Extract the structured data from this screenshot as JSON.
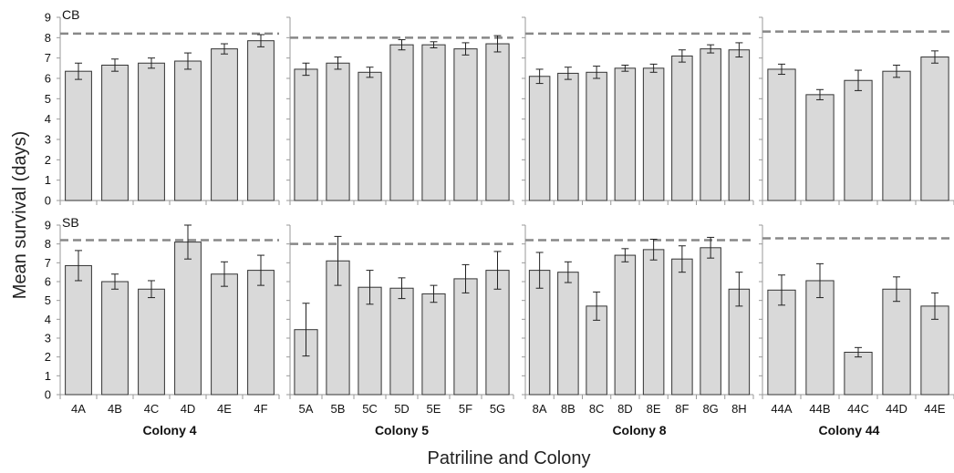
{
  "chart_data": {
    "type": "bar",
    "ylabel": "Mean survival (days)",
    "xlabel": "Patriline and Colony",
    "ylim": [
      0,
      9
    ],
    "yticks": [
      0,
      1,
      2,
      3,
      4,
      5,
      6,
      7,
      8,
      9
    ],
    "colors": {
      "bar_fill": "#d9d9d9",
      "bar_stroke": "#333333",
      "reference_line": "#888888"
    },
    "reference_line_style": "dashed",
    "rows": [
      "CB",
      "SB"
    ],
    "colonies": [
      {
        "name": "Colony 4",
        "categories": [
          "4A",
          "4B",
          "4C",
          "4D",
          "4E",
          "4F"
        ],
        "series": [
          {
            "name": "CB",
            "values": [
              6.35,
              6.65,
              6.75,
              6.85,
              7.45,
              7.85
            ],
            "errors": [
              0.4,
              0.3,
              0.25,
              0.4,
              0.25,
              0.3
            ],
            "reference": 8.2
          },
          {
            "name": "SB",
            "values": [
              6.85,
              6.0,
              5.6,
              8.1,
              6.4,
              6.6
            ],
            "errors": [
              0.8,
              0.4,
              0.45,
              0.9,
              0.65,
              0.8
            ],
            "reference": 8.2
          }
        ]
      },
      {
        "name": "Colony 5",
        "categories": [
          "5A",
          "5B",
          "5C",
          "5D",
          "5E",
          "5F",
          "5G"
        ],
        "series": [
          {
            "name": "CB",
            "values": [
              6.45,
              6.75,
              6.3,
              7.65,
              7.65,
              7.45,
              7.7
            ],
            "errors": [
              0.3,
              0.3,
              0.25,
              0.25,
              0.15,
              0.3,
              0.4
            ],
            "reference": 8.0
          },
          {
            "name": "SB",
            "values": [
              3.45,
              7.1,
              5.7,
              5.65,
              5.35,
              6.15,
              6.6
            ],
            "errors": [
              1.4,
              1.3,
              0.9,
              0.55,
              0.45,
              0.75,
              1.0
            ],
            "reference": 8.0
          }
        ]
      },
      {
        "name": "Colony 8",
        "categories": [
          "8A",
          "8B",
          "8C",
          "8D",
          "8E",
          "8F",
          "8G",
          "8H"
        ],
        "series": [
          {
            "name": "CB",
            "values": [
              6.1,
              6.25,
              6.3,
              6.5,
              6.5,
              7.1,
              7.45,
              7.4
            ],
            "errors": [
              0.35,
              0.3,
              0.3,
              0.15,
              0.2,
              0.3,
              0.2,
              0.35
            ],
            "reference": 8.2
          },
          {
            "name": "SB",
            "values": [
              6.6,
              6.5,
              4.7,
              7.4,
              7.7,
              7.2,
              7.8,
              5.6
            ],
            "errors": [
              0.95,
              0.55,
              0.75,
              0.35,
              0.55,
              0.7,
              0.55,
              0.9
            ],
            "reference": 8.2
          }
        ]
      },
      {
        "name": "Colony 44",
        "categories": [
          "44A",
          "44B",
          "44C",
          "44D",
          "44E"
        ],
        "series": [
          {
            "name": "CB",
            "values": [
              6.45,
              5.2,
              5.9,
              6.35,
              7.05
            ],
            "errors": [
              0.25,
              0.25,
              0.5,
              0.3,
              0.3
            ],
            "reference": 8.3
          },
          {
            "name": "SB",
            "values": [
              5.55,
              6.05,
              2.25,
              5.6,
              4.7
            ],
            "errors": [
              0.8,
              0.9,
              0.25,
              0.65,
              0.7
            ],
            "reference": 8.3
          }
        ]
      }
    ]
  }
}
